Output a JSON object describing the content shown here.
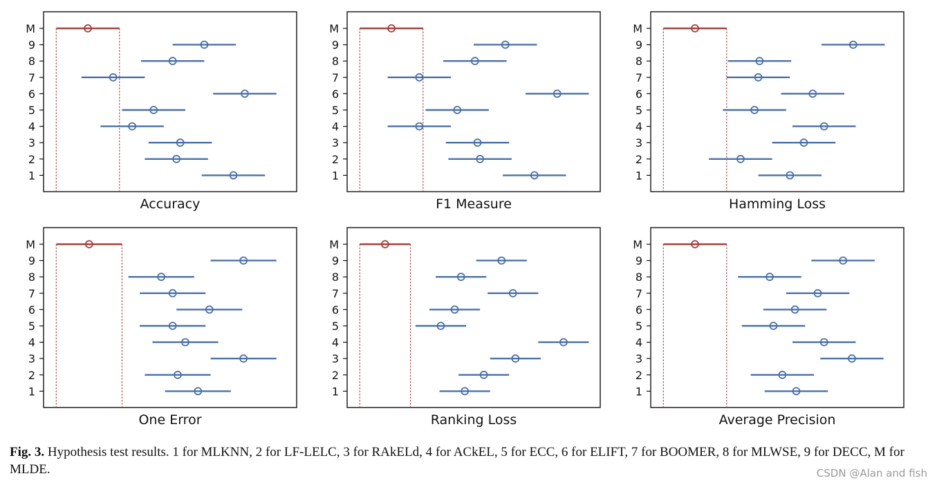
{
  "colors": {
    "ref": "#a3413a",
    "series": "#4a70a6",
    "axis": "#111111",
    "watermark": "#9a9a9a"
  },
  "chart_data": [
    {
      "type": "scatter",
      "xlabel": "Accuracy",
      "title": "",
      "yticks": [
        "1",
        "2",
        "3",
        "4",
        "5",
        "6",
        "7",
        "8",
        "9",
        "M"
      ],
      "xlim": [
        0,
        10
      ],
      "ref": {
        "label": "M",
        "center": 1.75,
        "low": 0.5,
        "high": 3.0
      },
      "points": [
        {
          "label": "9",
          "center": 6.35,
          "low": 5.1,
          "high": 7.6
        },
        {
          "label": "8",
          "center": 5.1,
          "low": 3.85,
          "high": 6.35
        },
        {
          "label": "7",
          "center": 2.75,
          "low": 1.5,
          "high": 4.0
        },
        {
          "label": "6",
          "center": 7.95,
          "low": 6.7,
          "high": 9.2
        },
        {
          "label": "5",
          "center": 4.35,
          "low": 3.1,
          "high": 5.6
        },
        {
          "label": "4",
          "center": 3.5,
          "low": 2.25,
          "high": 4.75
        },
        {
          "label": "3",
          "center": 5.4,
          "low": 4.15,
          "high": 6.65
        },
        {
          "label": "2",
          "center": 5.25,
          "low": 4.0,
          "high": 6.5
        },
        {
          "label": "1",
          "center": 7.5,
          "low": 6.25,
          "high": 8.75
        }
      ]
    },
    {
      "type": "scatter",
      "xlabel": "F1 Measure",
      "title": "",
      "yticks": [
        "1",
        "2",
        "3",
        "4",
        "5",
        "6",
        "7",
        "8",
        "9",
        "M"
      ],
      "xlim": [
        0,
        10
      ],
      "ref": {
        "label": "M",
        "center": 1.75,
        "low": 0.5,
        "high": 3.0
      },
      "points": [
        {
          "label": "9",
          "center": 6.25,
          "low": 5.0,
          "high": 7.5
        },
        {
          "label": "8",
          "center": 5.05,
          "low": 3.8,
          "high": 6.3
        },
        {
          "label": "7",
          "center": 2.85,
          "low": 1.6,
          "high": 4.1
        },
        {
          "label": "6",
          "center": 8.3,
          "low": 7.05,
          "high": 9.55
        },
        {
          "label": "5",
          "center": 4.35,
          "low": 3.1,
          "high": 5.6
        },
        {
          "label": "4",
          "center": 2.85,
          "low": 1.6,
          "high": 4.1
        },
        {
          "label": "3",
          "center": 5.15,
          "low": 3.9,
          "high": 6.4
        },
        {
          "label": "2",
          "center": 5.25,
          "low": 4.0,
          "high": 6.5
        },
        {
          "label": "1",
          "center": 7.4,
          "low": 6.15,
          "high": 8.65
        }
      ]
    },
    {
      "type": "scatter",
      "xlabel": "Hamming Loss",
      "title": "",
      "yticks": [
        "1",
        "2",
        "3",
        "4",
        "5",
        "6",
        "7",
        "8",
        "9",
        "M"
      ],
      "xlim": [
        0,
        10
      ],
      "ref": {
        "label": "M",
        "center": 1.75,
        "low": 0.5,
        "high": 3.0
      },
      "points": [
        {
          "label": "9",
          "center": 8.0,
          "low": 6.75,
          "high": 9.25
        },
        {
          "label": "8",
          "center": 4.3,
          "low": 3.05,
          "high": 5.55
        },
        {
          "label": "7",
          "center": 4.25,
          "low": 3.0,
          "high": 5.5
        },
        {
          "label": "6",
          "center": 6.4,
          "low": 5.15,
          "high": 7.65
        },
        {
          "label": "5",
          "center": 4.1,
          "low": 2.85,
          "high": 5.35
        },
        {
          "label": "4",
          "center": 6.85,
          "low": 5.6,
          "high": 8.1
        },
        {
          "label": "3",
          "center": 6.05,
          "low": 4.8,
          "high": 7.3
        },
        {
          "label": "2",
          "center": 3.55,
          "low": 2.3,
          "high": 4.8
        },
        {
          "label": "1",
          "center": 5.5,
          "low": 4.25,
          "high": 6.75
        }
      ]
    },
    {
      "type": "scatter",
      "xlabel": "One Error",
      "title": "",
      "yticks": [
        "1",
        "2",
        "3",
        "4",
        "5",
        "6",
        "7",
        "8",
        "9",
        "M"
      ],
      "xlim": [
        0,
        10
      ],
      "ref": {
        "label": "M",
        "center": 1.8,
        "low": 0.5,
        "high": 3.1
      },
      "points": [
        {
          "label": "9",
          "center": 7.9,
          "low": 6.6,
          "high": 9.2
        },
        {
          "label": "8",
          "center": 4.65,
          "low": 3.35,
          "high": 5.95
        },
        {
          "label": "7",
          "center": 5.1,
          "low": 3.8,
          "high": 6.4
        },
        {
          "label": "6",
          "center": 6.55,
          "low": 5.25,
          "high": 7.85
        },
        {
          "label": "5",
          "center": 5.1,
          "low": 3.8,
          "high": 6.4
        },
        {
          "label": "4",
          "center": 5.6,
          "low": 4.3,
          "high": 6.9
        },
        {
          "label": "3",
          "center": 7.9,
          "low": 6.6,
          "high": 9.2
        },
        {
          "label": "2",
          "center": 5.3,
          "low": 4.0,
          "high": 6.6
        },
        {
          "label": "1",
          "center": 6.1,
          "low": 4.8,
          "high": 7.4
        }
      ]
    },
    {
      "type": "scatter",
      "xlabel": "Ranking Loss",
      "title": "",
      "yticks": [
        "1",
        "2",
        "3",
        "4",
        "5",
        "6",
        "7",
        "8",
        "9",
        "M"
      ],
      "xlim": [
        0,
        10
      ],
      "ref": {
        "label": "M",
        "center": 1.5,
        "low": 0.5,
        "high": 2.5
      },
      "points": [
        {
          "label": "9",
          "center": 6.1,
          "low": 5.1,
          "high": 7.1
        },
        {
          "label": "8",
          "center": 4.5,
          "low": 3.5,
          "high": 5.5
        },
        {
          "label": "7",
          "center": 6.55,
          "low": 5.55,
          "high": 7.55
        },
        {
          "label": "6",
          "center": 4.25,
          "low": 3.25,
          "high": 5.25
        },
        {
          "label": "5",
          "center": 3.7,
          "low": 2.7,
          "high": 4.7
        },
        {
          "label": "4",
          "center": 8.55,
          "low": 7.55,
          "high": 9.55
        },
        {
          "label": "3",
          "center": 6.65,
          "low": 5.65,
          "high": 7.65
        },
        {
          "label": "2",
          "center": 5.4,
          "low": 4.4,
          "high": 6.4
        },
        {
          "label": "1",
          "center": 4.65,
          "low": 3.65,
          "high": 5.65
        }
      ]
    },
    {
      "type": "scatter",
      "xlabel": "Average Precision",
      "title": "",
      "yticks": [
        "1",
        "2",
        "3",
        "4",
        "5",
        "6",
        "7",
        "8",
        "9",
        "M"
      ],
      "xlim": [
        0,
        10
      ],
      "ref": {
        "label": "M",
        "center": 1.75,
        "low": 0.5,
        "high": 3.0
      },
      "points": [
        {
          "label": "9",
          "center": 7.6,
          "low": 6.35,
          "high": 8.85
        },
        {
          "label": "8",
          "center": 4.7,
          "low": 3.45,
          "high": 5.95
        },
        {
          "label": "7",
          "center": 6.6,
          "low": 5.35,
          "high": 7.85
        },
        {
          "label": "6",
          "center": 5.7,
          "low": 4.45,
          "high": 6.95
        },
        {
          "label": "5",
          "center": 4.85,
          "low": 3.6,
          "high": 6.1
        },
        {
          "label": "4",
          "center": 6.85,
          "low": 5.6,
          "high": 8.1
        },
        {
          "label": "3",
          "center": 7.95,
          "low": 6.7,
          "high": 9.2
        },
        {
          "label": "2",
          "center": 5.2,
          "low": 3.95,
          "high": 6.45
        },
        {
          "label": "1",
          "center": 5.75,
          "low": 4.5,
          "high": 7.0
        }
      ]
    }
  ],
  "caption": {
    "label": "Fig. 3.",
    "text": "Hypothesis test results. 1 for MLKNN, 2 for LF-LELC, 3 for RAkELd, 4 for ACkEL, 5 for ECC, 6 for ELIFT, 7 for BOOMER, 8 for MLWSE, 9 for DECC, M for MLDE."
  },
  "watermark": "CSDN @Alan and fish"
}
